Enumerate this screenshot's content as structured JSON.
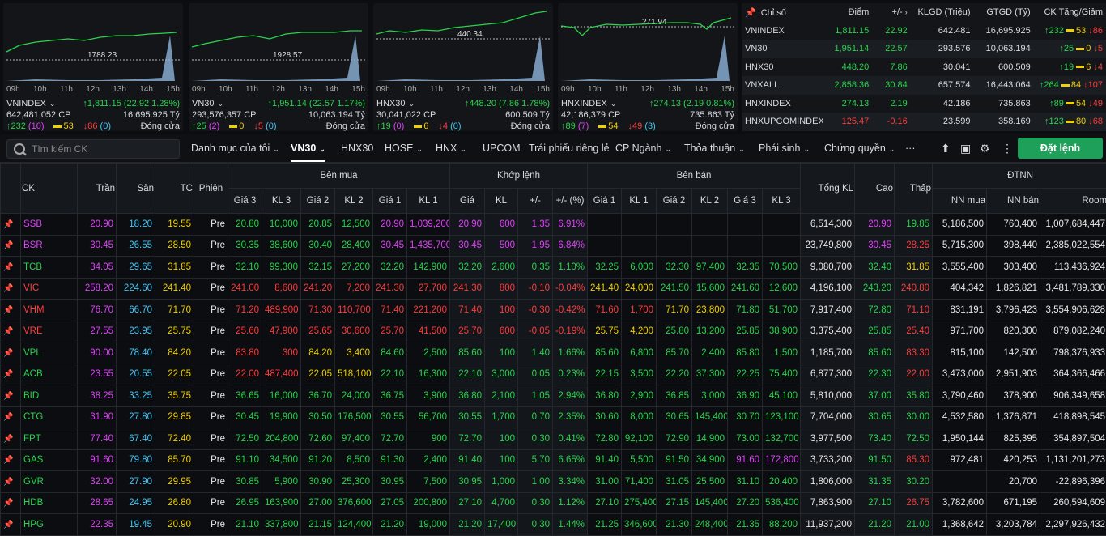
{
  "charts": [
    {
      "name": "VNINDEX",
      "ref_label": "1788.23",
      "vol": "642,481,052 CP",
      "value": "1,811.15 (22.92 1.28%)",
      "gtgd": "16,695.925 Tỷ",
      "up": "232",
      "up_ceil": "(10)",
      "flat": "53",
      "down": "86",
      "down_floor": "(0)",
      "status": "Đóng cửa",
      "color": "#27d44b",
      "hours": [
        "09h",
        "10h",
        "11h",
        "12h",
        "13h",
        "14h",
        "15h"
      ]
    },
    {
      "name": "VN30",
      "ref_label": "1928.57",
      "vol": "293,576,357 CP",
      "value": "1,951.14 (22.57 1.17%)",
      "gtgd": "10,063.194 Tỷ",
      "up": "25",
      "up_ceil": "(2)",
      "flat": "0",
      "down": "5",
      "down_floor": "(0)",
      "status": "Đóng cửa",
      "color": "#27d44b",
      "hours": [
        "09h",
        "10h",
        "11h",
        "12h",
        "13h",
        "14h",
        "15h"
      ]
    },
    {
      "name": "HNX30",
      "ref_label": "440.34",
      "vol": "30,041,022 CP",
      "value": "448.20 (7.86 1.78%)",
      "gtgd": "600.509 Tỷ",
      "up": "19",
      "up_ceil": "(0)",
      "flat": "6",
      "down": "4",
      "down_floor": "(0)",
      "status": "Đóng cửa",
      "color": "#27d44b",
      "hours": [
        "09h",
        "10h",
        "11h",
        "12h",
        "13h",
        "14h",
        "15h"
      ]
    },
    {
      "name": "HNXINDEX",
      "ref_label": "271.94",
      "vol": "42,186,379 CP",
      "value": "274.13 (2.19 0.81%)",
      "gtgd": "735.863 Tỷ",
      "up": "89",
      "up_ceil": "(7)",
      "flat": "54",
      "down": "49",
      "down_floor": "(3)",
      "status": "Đóng cửa",
      "color": "#27d44b",
      "hours": [
        "09h",
        "10h",
        "11h",
        "12h",
        "13h",
        "14h",
        "15h"
      ]
    }
  ],
  "summary": {
    "headers": [
      "Chỉ số",
      "Điểm",
      "+/-",
      "KLGD (Triệu)",
      "GTGD (Tỷ)",
      "CK Tăng/Giảm"
    ],
    "rows": [
      {
        "name": "VNINDEX",
        "point": "1,811.15",
        "chg": "22.92",
        "kl": "642.481",
        "gt": "16,695.925",
        "up": "232",
        "flat": "53",
        "down": "86",
        "color": "#27d44b"
      },
      {
        "name": "VN30",
        "point": "1,951.14",
        "chg": "22.57",
        "kl": "293.576",
        "gt": "10,063.194",
        "up": "25",
        "flat": "0",
        "down": "5",
        "color": "#27d44b"
      },
      {
        "name": "HNX30",
        "point": "448.20",
        "chg": "7.86",
        "kl": "30.041",
        "gt": "600.509",
        "up": "19",
        "flat": "6",
        "down": "4",
        "color": "#27d44b"
      },
      {
        "name": "VNXALL",
        "point": "2,858.36",
        "chg": "30.84",
        "kl": "657.574",
        "gt": "16,443.064",
        "up": "264",
        "flat": "84",
        "down": "107",
        "color": "#27d44b"
      },
      {
        "name": "HNXINDEX",
        "point": "274.13",
        "chg": "2.19",
        "kl": "42.186",
        "gt": "735.863",
        "up": "89",
        "flat": "54",
        "down": "49",
        "color": "#27d44b"
      },
      {
        "name": "HNXUPCOMINDEX",
        "point": "125.47",
        "chg": "-0.16",
        "kl": "23.599",
        "gt": "358.169",
        "up": "123",
        "flat": "80",
        "down": "68",
        "color": "#ff3c3c"
      }
    ]
  },
  "toolbar": {
    "search_placeholder": "Tìm kiếm CK",
    "tabs": [
      "Danh mục của tôi",
      "VN30",
      "HNX30",
      "HOSE",
      "HNX",
      "UPCOM",
      "Trái phiếu riêng lẻ",
      "CP Ngành",
      "Thỏa thuận",
      "Phái sinh",
      "Chứng quyền",
      "···"
    ],
    "order_button": "Đặt lệnh"
  },
  "board": {
    "group_headers": {
      "buy": "Bên mua",
      "match": "Khớp lệnh",
      "sell": "Bên bán",
      "foreign": "ĐTNN"
    },
    "headers": {
      "ck": "CK",
      "ceil": "Trần",
      "floor": "Sàn",
      "ref": "TC",
      "session": "Phiên",
      "p3": "Giá 3",
      "v3": "KL 3",
      "p2": "Giá 2",
      "v2": "KL 2",
      "p1": "Giá 1",
      "v1": "KL 1",
      "mp": "Giá",
      "mv": "KL",
      "chg": "+/-",
      "pct": "+/- (%)",
      "total": "Tổng KL",
      "high": "Cao",
      "low": "Thấp",
      "nnbuy": "NN mua",
      "nnsell": "NN bán",
      "room": "Room"
    },
    "rows": [
      [
        "SSB",
        "20.90",
        "18.20",
        "19.55",
        "Pre",
        "20.80",
        "10,000",
        "20.85",
        "12,500",
        "20.90",
        "1,039,200",
        "20.90",
        "600",
        "1.35",
        "6.91%",
        "",
        "",
        "",
        "",
        "",
        "",
        "6,514,300",
        "20.90",
        "19.85",
        "5,186,500",
        "760,400",
        "1,007,684,447"
      ],
      [
        "BSR",
        "30.45",
        "26.55",
        "28.50",
        "Pre",
        "30.35",
        "38,600",
        "30.40",
        "28,400",
        "30.45",
        "1,435,700",
        "30.45",
        "500",
        "1.95",
        "6.84%",
        "",
        "",
        "",
        "",
        "",
        "",
        "23,749,800",
        "30.45",
        "28.25",
        "5,715,300",
        "398,440",
        "2,385,022,554"
      ],
      [
        "TCB",
        "34.05",
        "29.65",
        "31.85",
        "Pre",
        "32.10",
        "99,300",
        "32.15",
        "27,200",
        "32.20",
        "142,900",
        "32.20",
        "2,600",
        "0.35",
        "1.10%",
        "32.25",
        "6,000",
        "32.30",
        "97,400",
        "32.35",
        "70,500",
        "9,080,700",
        "32.40",
        "31.85",
        "3,555,400",
        "303,400",
        "113,436,924"
      ],
      [
        "VIC",
        "258.20",
        "224.60",
        "241.40",
        "Pre",
        "241.00",
        "8,600",
        "241.20",
        "7,200",
        "241.30",
        "27,700",
        "241.30",
        "800",
        "-0.10",
        "-0.04%",
        "241.40",
        "24,000",
        "241.50",
        "15,600",
        "241.60",
        "12,600",
        "4,196,100",
        "243.20",
        "240.80",
        "404,342",
        "1,826,821",
        "3,481,789,330"
      ],
      [
        "VHM",
        "76.70",
        "66.70",
        "71.70",
        "Pre",
        "71.20",
        "489,900",
        "71.30",
        "110,700",
        "71.40",
        "221,200",
        "71.40",
        "100",
        "-0.30",
        "-0.42%",
        "71.60",
        "1,700",
        "71.70",
        "23,800",
        "71.80",
        "51,700",
        "7,917,400",
        "72.80",
        "71.10",
        "831,191",
        "3,796,423",
        "3,554,906,628"
      ],
      [
        "VRE",
        "27.55",
        "23.95",
        "25.75",
        "Pre",
        "25.60",
        "47,900",
        "25.65",
        "30,600",
        "25.70",
        "41,500",
        "25.70",
        "600",
        "-0.05",
        "-0.19%",
        "25.75",
        "4,200",
        "25.80",
        "13,200",
        "25.85",
        "38,900",
        "3,375,400",
        "25.85",
        "25.40",
        "971,700",
        "820,300",
        "879,082,240"
      ],
      [
        "VPL",
        "90.00",
        "78.40",
        "84.20",
        "Pre",
        "83.80",
        "300",
        "84.20",
        "3,400",
        "84.60",
        "2,500",
        "85.60",
        "100",
        "1.40",
        "1.66%",
        "85.60",
        "6,800",
        "85.70",
        "2,400",
        "85.80",
        "1,500",
        "1,185,700",
        "85.60",
        "83.30",
        "815,100",
        "142,500",
        "798,376,933"
      ],
      [
        "ACB",
        "23.55",
        "20.55",
        "22.05",
        "Pre",
        "22.00",
        "487,400",
        "22.05",
        "518,100",
        "22.10",
        "16,300",
        "22.10",
        "3,000",
        "0.05",
        "0.23%",
        "22.15",
        "3,500",
        "22.20",
        "37,300",
        "22.25",
        "75,400",
        "6,877,300",
        "22.30",
        "22.00",
        "3,473,000",
        "2,951,903",
        "364,366,466"
      ],
      [
        "BID",
        "38.25",
        "33.25",
        "35.75",
        "Pre",
        "36.65",
        "16,000",
        "36.70",
        "24,000",
        "36.75",
        "3,900",
        "36.80",
        "2,100",
        "1.05",
        "2.94%",
        "36.80",
        "2,900",
        "36.85",
        "3,000",
        "36.90",
        "45,100",
        "5,810,000",
        "37.00",
        "35.80",
        "3,790,460",
        "378,900",
        "906,349,658"
      ],
      [
        "CTG",
        "31.90",
        "27.80",
        "29.85",
        "Pre",
        "30.45",
        "19,900",
        "30.50",
        "176,500",
        "30.55",
        "56,700",
        "30.55",
        "1,700",
        "0.70",
        "2.35%",
        "30.60",
        "8,000",
        "30.65",
        "145,400",
        "30.70",
        "123,100",
        "7,704,000",
        "30.65",
        "30.00",
        "4,532,580",
        "1,376,871",
        "418,898,545"
      ],
      [
        "FPT",
        "77.40",
        "67.40",
        "72.40",
        "Pre",
        "72.50",
        "204,800",
        "72.60",
        "97,400",
        "72.70",
        "900",
        "72.70",
        "100",
        "0.30",
        "0.41%",
        "72.80",
        "92,100",
        "72.90",
        "14,900",
        "73.00",
        "132,700",
        "3,977,500",
        "73.40",
        "72.50",
        "1,950,144",
        "825,395",
        "354,897,504"
      ],
      [
        "GAS",
        "91.60",
        "79.80",
        "85.70",
        "Pre",
        "91.10",
        "34,500",
        "91.20",
        "8,500",
        "91.30",
        "2,400",
        "91.40",
        "100",
        "5.70",
        "6.65%",
        "91.40",
        "5,500",
        "91.50",
        "34,900",
        "91.60",
        "172,800",
        "3,733,200",
        "91.50",
        "85.30",
        "972,481",
        "420,253",
        "1,131,201,273"
      ],
      [
        "GVR",
        "32.00",
        "27.90",
        "29.95",
        "Pre",
        "30.85",
        "5,900",
        "30.90",
        "25,300",
        "30.95",
        "7,500",
        "30.95",
        "1,000",
        "1.00",
        "3.34%",
        "31.00",
        "71,400",
        "31.05",
        "25,500",
        "31.10",
        "20,400",
        "1,806,000",
        "31.35",
        "30.20",
        "",
        "20,700",
        "-22,896,396"
      ],
      [
        "HDB",
        "28.65",
        "24.95",
        "26.80",
        "Pre",
        "26.95",
        "163,900",
        "27.00",
        "376,600",
        "27.05",
        "200,800",
        "27.10",
        "4,700",
        "0.30",
        "1.12%",
        "27.10",
        "275,400",
        "27.15",
        "145,400",
        "27.20",
        "536,400",
        "7,863,900",
        "27.10",
        "26.75",
        "3,782,600",
        "671,195",
        "260,594,609"
      ],
      [
        "HPG",
        "22.35",
        "19.45",
        "20.90",
        "Pre",
        "21.10",
        "337,800",
        "21.15",
        "124,400",
        "21.20",
        "19,000",
        "21.20",
        "17,400",
        "0.30",
        "1.44%",
        "21.25",
        "346,600",
        "21.30",
        "248,400",
        "21.35",
        "88,200",
        "11,937,200",
        "21.20",
        "21.00",
        "1,368,642",
        "3,203,784",
        "2,297,926,432"
      ]
    ]
  }
}
